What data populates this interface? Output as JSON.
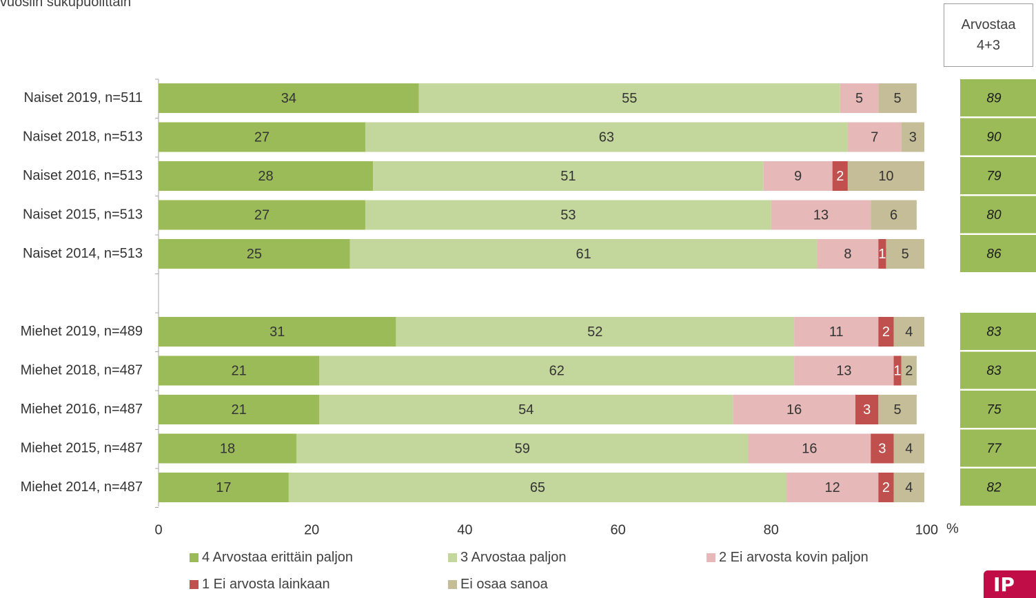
{
  "subtitle": "vuosiin sukupuolittain",
  "summary_header": {
    "line1": "Arvostaa",
    "line2": "4+3"
  },
  "colors": {
    "c4": "#9bbb59",
    "c3": "#c3d69b",
    "c2": "#e6b9b8",
    "c1": "#c0504d",
    "c0": "#c4bd97",
    "summary": "#9bbb59"
  },
  "chart_data": {
    "type": "bar",
    "orientation": "horizontal",
    "stacked": true,
    "xlim": [
      0,
      100
    ],
    "x_ticks": [
      "0",
      "20",
      "40",
      "60",
      "80",
      "100"
    ],
    "x_unit": "%",
    "categories": [
      "Naiset 2019, n=511",
      "Naiset 2018, n=513",
      "Naiset 2016, n=513",
      "Naiset 2015, n=513",
      "Naiset 2014, n=513",
      "",
      "Miehet 2019, n=489",
      "Miehet 2018, n=487",
      "Miehet 2016, n=487",
      "Miehet 2015, n=487",
      "Miehet 2014, n=487"
    ],
    "series": [
      {
        "name": "4 Arvostaa erittäin paljon",
        "key": "c4",
        "values": [
          34,
          27,
          28,
          27,
          25,
          null,
          31,
          21,
          21,
          18,
          17
        ]
      },
      {
        "name": "3 Arvostaa paljon",
        "key": "c3",
        "values": [
          55,
          63,
          51,
          53,
          61,
          null,
          52,
          62,
          54,
          59,
          65
        ]
      },
      {
        "name": "2 Ei arvosta kovin paljon",
        "key": "c2",
        "values": [
          5,
          7,
          9,
          13,
          8,
          null,
          11,
          13,
          16,
          16,
          12
        ]
      },
      {
        "name": "1 Ei arvosta lainkaan",
        "key": "c1",
        "values": [
          0,
          0,
          2,
          0,
          1,
          null,
          2,
          1,
          3,
          3,
          2
        ]
      },
      {
        "name": "Ei osaa sanoa",
        "key": "c0",
        "values": [
          5,
          3,
          10,
          6,
          5,
          null,
          4,
          2,
          5,
          4,
          4
        ]
      }
    ],
    "summary_values": [
      89,
      90,
      79,
      80,
      86,
      null,
      83,
      83,
      75,
      77,
      82
    ],
    "legend_position": "bottom",
    "grid": false
  },
  "logo_text": "IP"
}
